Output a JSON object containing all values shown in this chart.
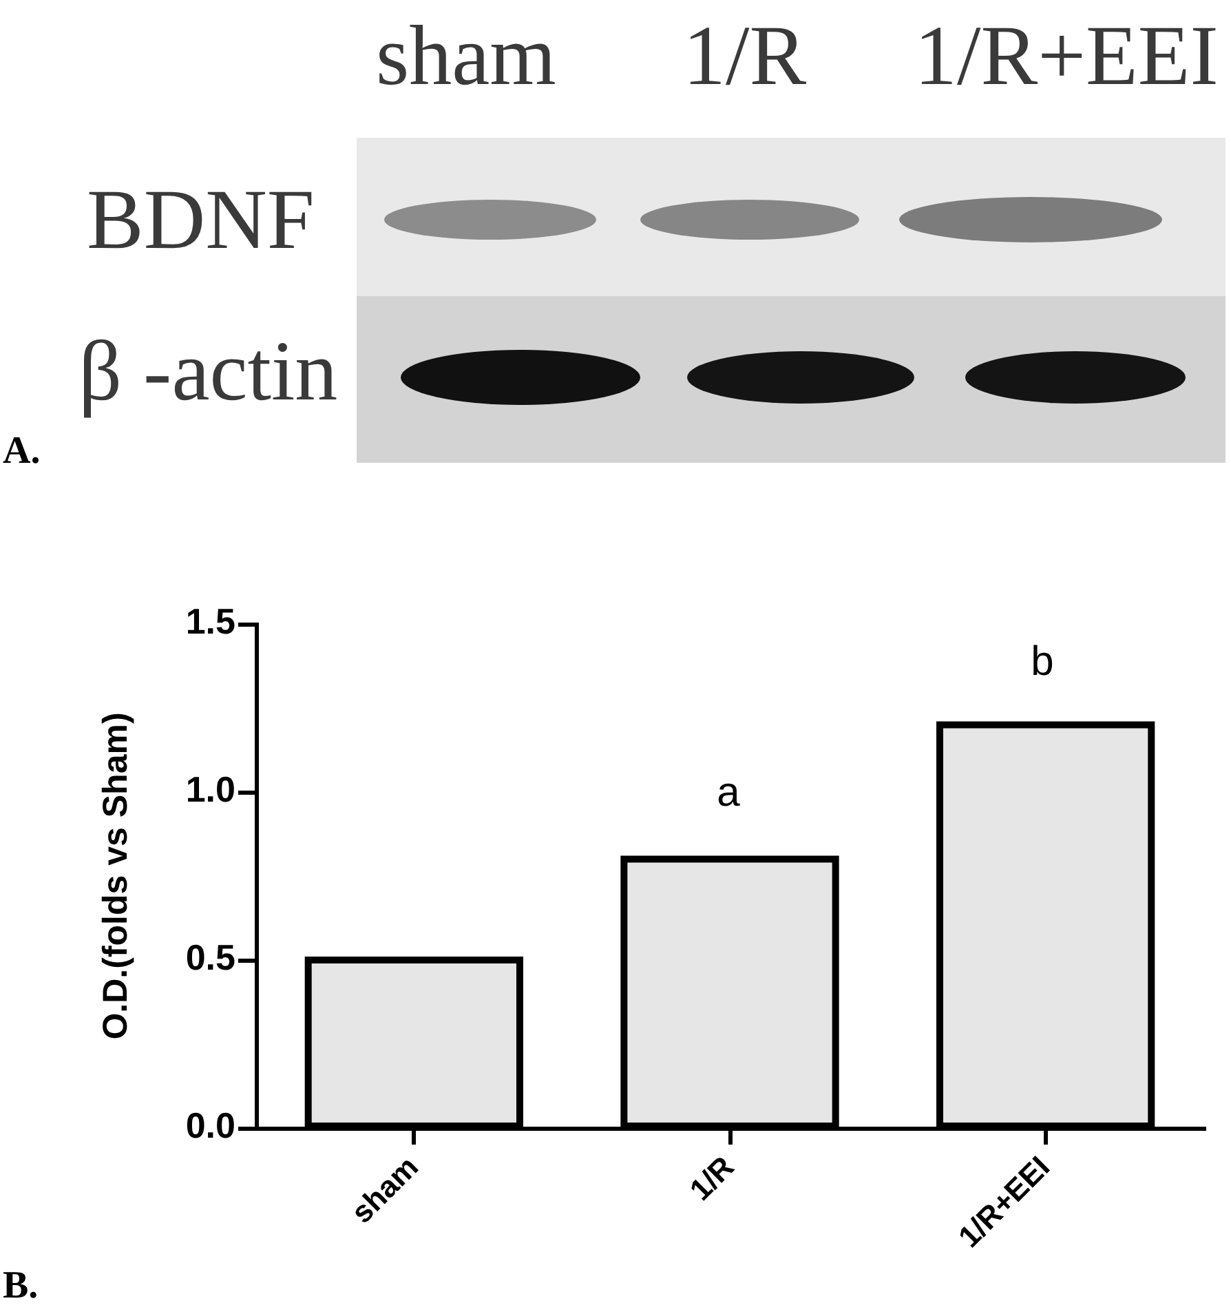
{
  "chart_data": {
    "type": "bar",
    "categories": [
      "sham",
      "1/R",
      "1/R+EEI"
    ],
    "values": [
      0.5,
      0.8,
      1.2
    ],
    "color": "#e6e6e6",
    "ylabel": "O.D.(folds vs Sham)",
    "ylim": [
      0,
      1.5
    ],
    "yticks": [
      {
        "value": 0,
        "label": "0.0"
      },
      0.5,
      {
        "value": 1,
        "label": "1.0"
      },
      1.5
    ],
    "annotations": [
      "sham",
      "1/R",
      "1/R+EEI",
      "BDNF",
      "β -actin",
      "A.",
      "a",
      "b",
      "B."
    ]
  }
}
